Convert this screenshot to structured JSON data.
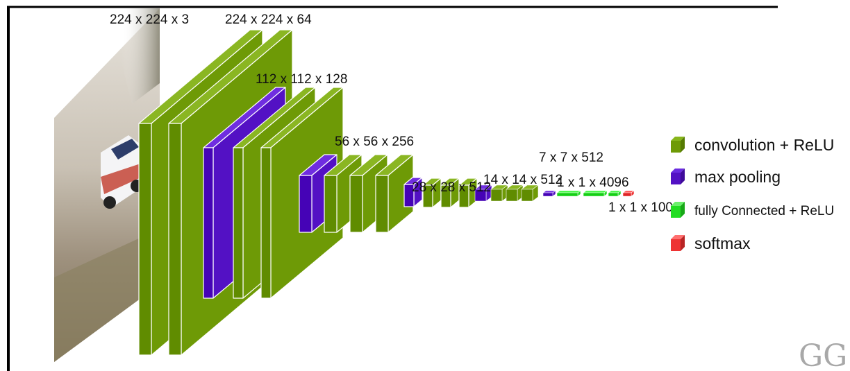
{
  "diagram": {
    "colors": {
      "conv": "#6e9a06",
      "conv_dark": "#557a03",
      "conv_light": "#87b51b",
      "pool": "#5311c4",
      "pool_dark": "#3f0b9a",
      "pool_light": "#6a2ce0",
      "fc": "#22dd22",
      "softmax": "#ee3333",
      "edge": "#ffffff",
      "border": "#000000"
    },
    "labels": {
      "input": "224 x 224 x 3",
      "conv1": "224 x 224 x 64",
      "conv2": "112 x 112 x 128",
      "conv3": "56 x 56 x 256",
      "conv4": "28 x 28 x 512",
      "conv5": "14 x 14 x 512",
      "pool5": "7 x 7 x 512",
      "fc": "1 x 1 x 4096",
      "out": "1 x 1 x 1000"
    },
    "legend": [
      {
        "label": "convolution + ReLU",
        "color_key": "conv",
        "icon": "green-cube-icon"
      },
      {
        "label": "max pooling",
        "color_key": "pool",
        "icon": "purple-cube-icon"
      },
      {
        "label": "fully Connected + ReLU",
        "color_key": "fc",
        "icon": "light-green-cube-icon"
      },
      {
        "label": "softmax",
        "color_key": "softmax",
        "icon": "red-cube-icon"
      }
    ],
    "logo": "GG"
  }
}
